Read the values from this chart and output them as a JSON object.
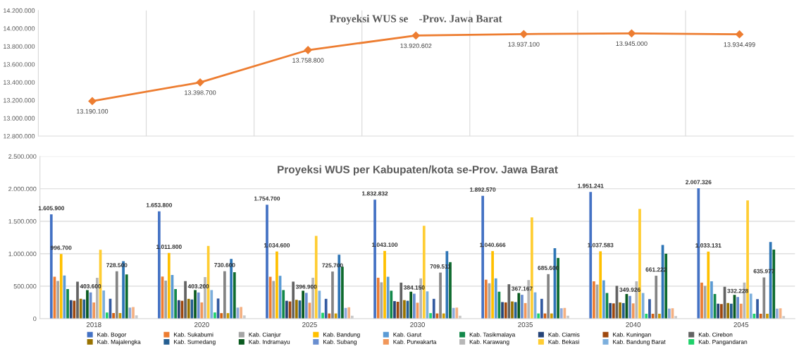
{
  "chart_data": [
    {
      "type": "line",
      "title": "Proyeksi WUS se    -Prov. Jawa Barat",
      "categories": [
        null,
        null,
        null,
        null,
        null,
        null,
        null
      ],
      "series": [
        {
          "color": "#ed7d31",
          "values": [
            13190100,
            13398700,
            13758800,
            13920602,
            13937100,
            13945000,
            13934499
          ],
          "value_labels": [
            "13.190.100",
            "13.398.700",
            "13.758.800",
            "13.920.602",
            "13.937.100",
            "13.945.000",
            "13.934.499"
          ]
        }
      ],
      "ylim": [
        12800000,
        14200000
      ],
      "yticks": [
        {
          "value": 12800000,
          "label": "12.800.000"
        },
        {
          "value": 13000000,
          "label": "13.000.000"
        },
        {
          "value": 13200000,
          "label": "13.200.000"
        },
        {
          "value": 13400000,
          "label": "13.400.000"
        },
        {
          "value": 13600000,
          "label": "13.600.000"
        },
        {
          "value": 13800000,
          "label": "13.800.000"
        },
        {
          "value": 14000000,
          "label": "14.000.000"
        },
        {
          "value": 14200000,
          "label": "14.200.000"
        }
      ],
      "grid": "x",
      "marker": "diamond",
      "line_style": "solid"
    },
    {
      "type": "bar",
      "title": "Proyeksi WUS per Kabupaten/kota se-Prov. Jawa Barat",
      "categories": [
        "2018",
        "2020",
        "2025",
        "2030",
        "2035",
        "2040",
        "2045"
      ],
      "series": [
        {
          "name": "Kab. Bogor",
          "color": "#4472c4",
          "values": [
            1605900,
            1653800,
            1754700,
            1832832,
            1892570,
            1951241,
            2007326
          ],
          "value_labels": [
            "1.605.900",
            "1.653.800",
            "1.754.700",
            "1.832.832",
            "1.892.570",
            "1.951.241",
            "2.007.326"
          ]
        },
        {
          "name": "Kab. Sukabumi",
          "color": "#ed7d31",
          "values": [
            645000,
            648000,
            645000,
            630000,
            600000,
            575000,
            555000
          ]
        },
        {
          "name": "Kab. Cianjur",
          "color": "#a5a5a5",
          "values": [
            580000,
            585000,
            580000,
            560000,
            545000,
            525000,
            505000
          ]
        },
        {
          "name": "Kab. Bandung",
          "color": "#ffc000",
          "values": [
            996700,
            1011800,
            1034600,
            1043100,
            1040666,
            1037583,
            1033131
          ],
          "value_labels": [
            "996.700",
            "1.011.800",
            "1.034.600",
            "1.043.100",
            "1.040.666",
            "1.037.583",
            "1.033.131"
          ]
        },
        {
          "name": "Kab. Garut",
          "color": "#5b9bd5",
          "values": [
            665000,
            672000,
            660000,
            645000,
            620000,
            590000,
            575000
          ]
        },
        {
          "name": "Kab. Tasikmalaya",
          "color": "#13884a",
          "values": [
            455000,
            455000,
            440000,
            430000,
            415000,
            395000,
            380000
          ]
        },
        {
          "name": "Kab. Ciamis",
          "color": "#264478",
          "values": [
            285000,
            285000,
            275000,
            270000,
            255000,
            240000,
            230000
          ]
        },
        {
          "name": "Kab. Kuningan",
          "color": "#9e480e",
          "values": [
            275000,
            275000,
            265000,
            260000,
            250000,
            235000,
            225000
          ]
        },
        {
          "name": "Kab. Cirebon",
          "color": "#636363",
          "values": [
            570000,
            578000,
            570000,
            555000,
            530000,
            505000,
            490000
          ]
        },
        {
          "name": "Kab. Majalengka",
          "color": "#997300",
          "values": [
            305000,
            305000,
            290000,
            285000,
            265000,
            250000,
            240000
          ]
        },
        {
          "name": "Kab. Sumedang",
          "color": "#255e91",
          "values": [
            295000,
            295000,
            280000,
            275000,
            255000,
            240000,
            230000
          ]
        },
        {
          "name": "Kab. Indramayu",
          "color": "#0a5a1f",
          "values": [
            440000,
            440000,
            430000,
            415000,
            395000,
            380000,
            365000
          ]
        },
        {
          "name": "Kab. Subang",
          "color": "#698ed0",
          "values": [
            403600,
            403200,
            396900,
            384150,
            367167,
            349926,
            332228
          ],
          "value_labels": [
            "403.600",
            "403.200",
            "396.900",
            "384.150",
            "367.167",
            "349.926",
            "332.228"
          ]
        },
        {
          "name": "Kab. Purwakarta",
          "color": "#f1975a",
          "values": [
            250000,
            250000,
            245000,
            245000,
            240000,
            235000,
            230000
          ]
        },
        {
          "name": "Kab. Karawang",
          "color": "#b7b7b7",
          "values": [
            630000,
            640000,
            630000,
            620000,
            595000,
            575000,
            555000
          ]
        },
        {
          "name": "Kab. Bekasi",
          "color": "#ffcd33",
          "values": [
            1060000,
            1120000,
            1275000,
            1430000,
            1560000,
            1690000,
            1820000
          ]
        },
        {
          "name": "Kab. Bandung Barat",
          "color": "#7cafdd",
          "values": [
            435000,
            440000,
            430000,
            420000,
            405000,
            395000,
            385000
          ]
        },
        {
          "name": "Kab. Pangandaran",
          "color": "#1fd16a",
          "values": [
            95000,
            95000,
            90000,
            85000,
            80000,
            75000,
            75000
          ]
        },
        {
          "color": "#335aa1",
          "values": [
            305000,
            310000,
            305000,
            305000,
            305000,
            300000,
            300000
          ]
        },
        {
          "color": "#d26012",
          "values": [
            85000,
            85000,
            80000,
            80000,
            80000,
            75000,
            75000
          ]
        },
        {
          "color": "#848484",
          "values": [
            728500,
            730600,
            725700,
            709511,
            685600,
            661222,
            635977
          ],
          "value_labels": [
            "728.500",
            "730.600",
            "725.700",
            "709.511",
            "685.600",
            "661.222",
            "635.977"
          ]
        },
        {
          "color": "#cc9a00",
          "values": [
            85000,
            85000,
            80000,
            80000,
            80000,
            75000,
            75000
          ]
        },
        {
          "color": "#2e75b6",
          "values": [
            885000,
            920000,
            985000,
            1040000,
            1085000,
            1135000,
            1180000
          ]
        },
        {
          "color": "#0e6b2e",
          "values": [
            680000,
            715000,
            800000,
            870000,
            935000,
            1000000,
            1065000
          ]
        },
        {
          "color": "#8faadc",
          "values": [
            170000,
            170000,
            165000,
            165000,
            160000,
            155000,
            155000
          ]
        },
        {
          "color": "#f4b183",
          "values": [
            178000,
            180000,
            175000,
            170000,
            165000,
            160000,
            160000
          ]
        },
        {
          "color": "#c9c9c9",
          "values": [
            50000,
            50000,
            45000,
            45000,
            45000,
            40000,
            40000
          ]
        }
      ],
      "ylim": [
        0,
        2500000
      ],
      "yticks": [
        0,
        {
          "value": 500000,
          "label": "500.000"
        },
        {
          "value": 1000000,
          "label": "1.000.000"
        },
        {
          "value": 1500000,
          "label": "1.500.000"
        },
        {
          "value": 2000000,
          "label": "2.000.000"
        },
        {
          "value": 2500000,
          "label": "2.500.000"
        }
      ],
      "grid": "y",
      "legend": "bottom"
    }
  ]
}
